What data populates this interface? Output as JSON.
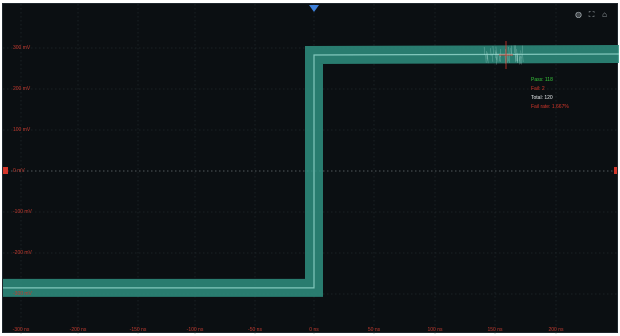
{
  "y_axis": {
    "labels": [
      "300 mV",
      "200 mV",
      "100 mV",
      "0 mV",
      "-100 mV",
      "-200 mV",
      "-300 mV"
    ],
    "values": [
      300,
      200,
      100,
      0,
      -100,
      -200,
      -300
    ]
  },
  "x_axis": {
    "labels": [
      "-300 ns",
      "-200 ns",
      "-150 ns",
      "-100 ns",
      "-50 ns",
      "0 ns",
      "50 ns",
      "100 ns",
      "150 ns",
      "200 ns"
    ],
    "values": [
      -300,
      -200,
      -150,
      -100,
      -50,
      0,
      50,
      100,
      150,
      200
    ]
  },
  "toolbar": {
    "icons": [
      "camera-icon",
      "fullscreen-icon",
      "home-icon"
    ],
    "glyphs": [
      "◍",
      "⛶",
      "⌂"
    ]
  },
  "stats": {
    "pass": "Pass: 118",
    "fail": "Fail: 2",
    "total": "Total: 120",
    "fail_rate": "Fail rate: 1.667%"
  },
  "waveform": {
    "low_level_mV": -290,
    "high_level_mV": 300,
    "edge_time_ns": 0,
    "band_color": "#2f8f80",
    "center_color": "#9fe0d5"
  },
  "colors": {
    "grid": "#2a3237",
    "zero_line": "#6b7276",
    "label": "#c23a2f",
    "fail_marker": "#d4362a",
    "trigger": "#3d7fd9"
  }
}
